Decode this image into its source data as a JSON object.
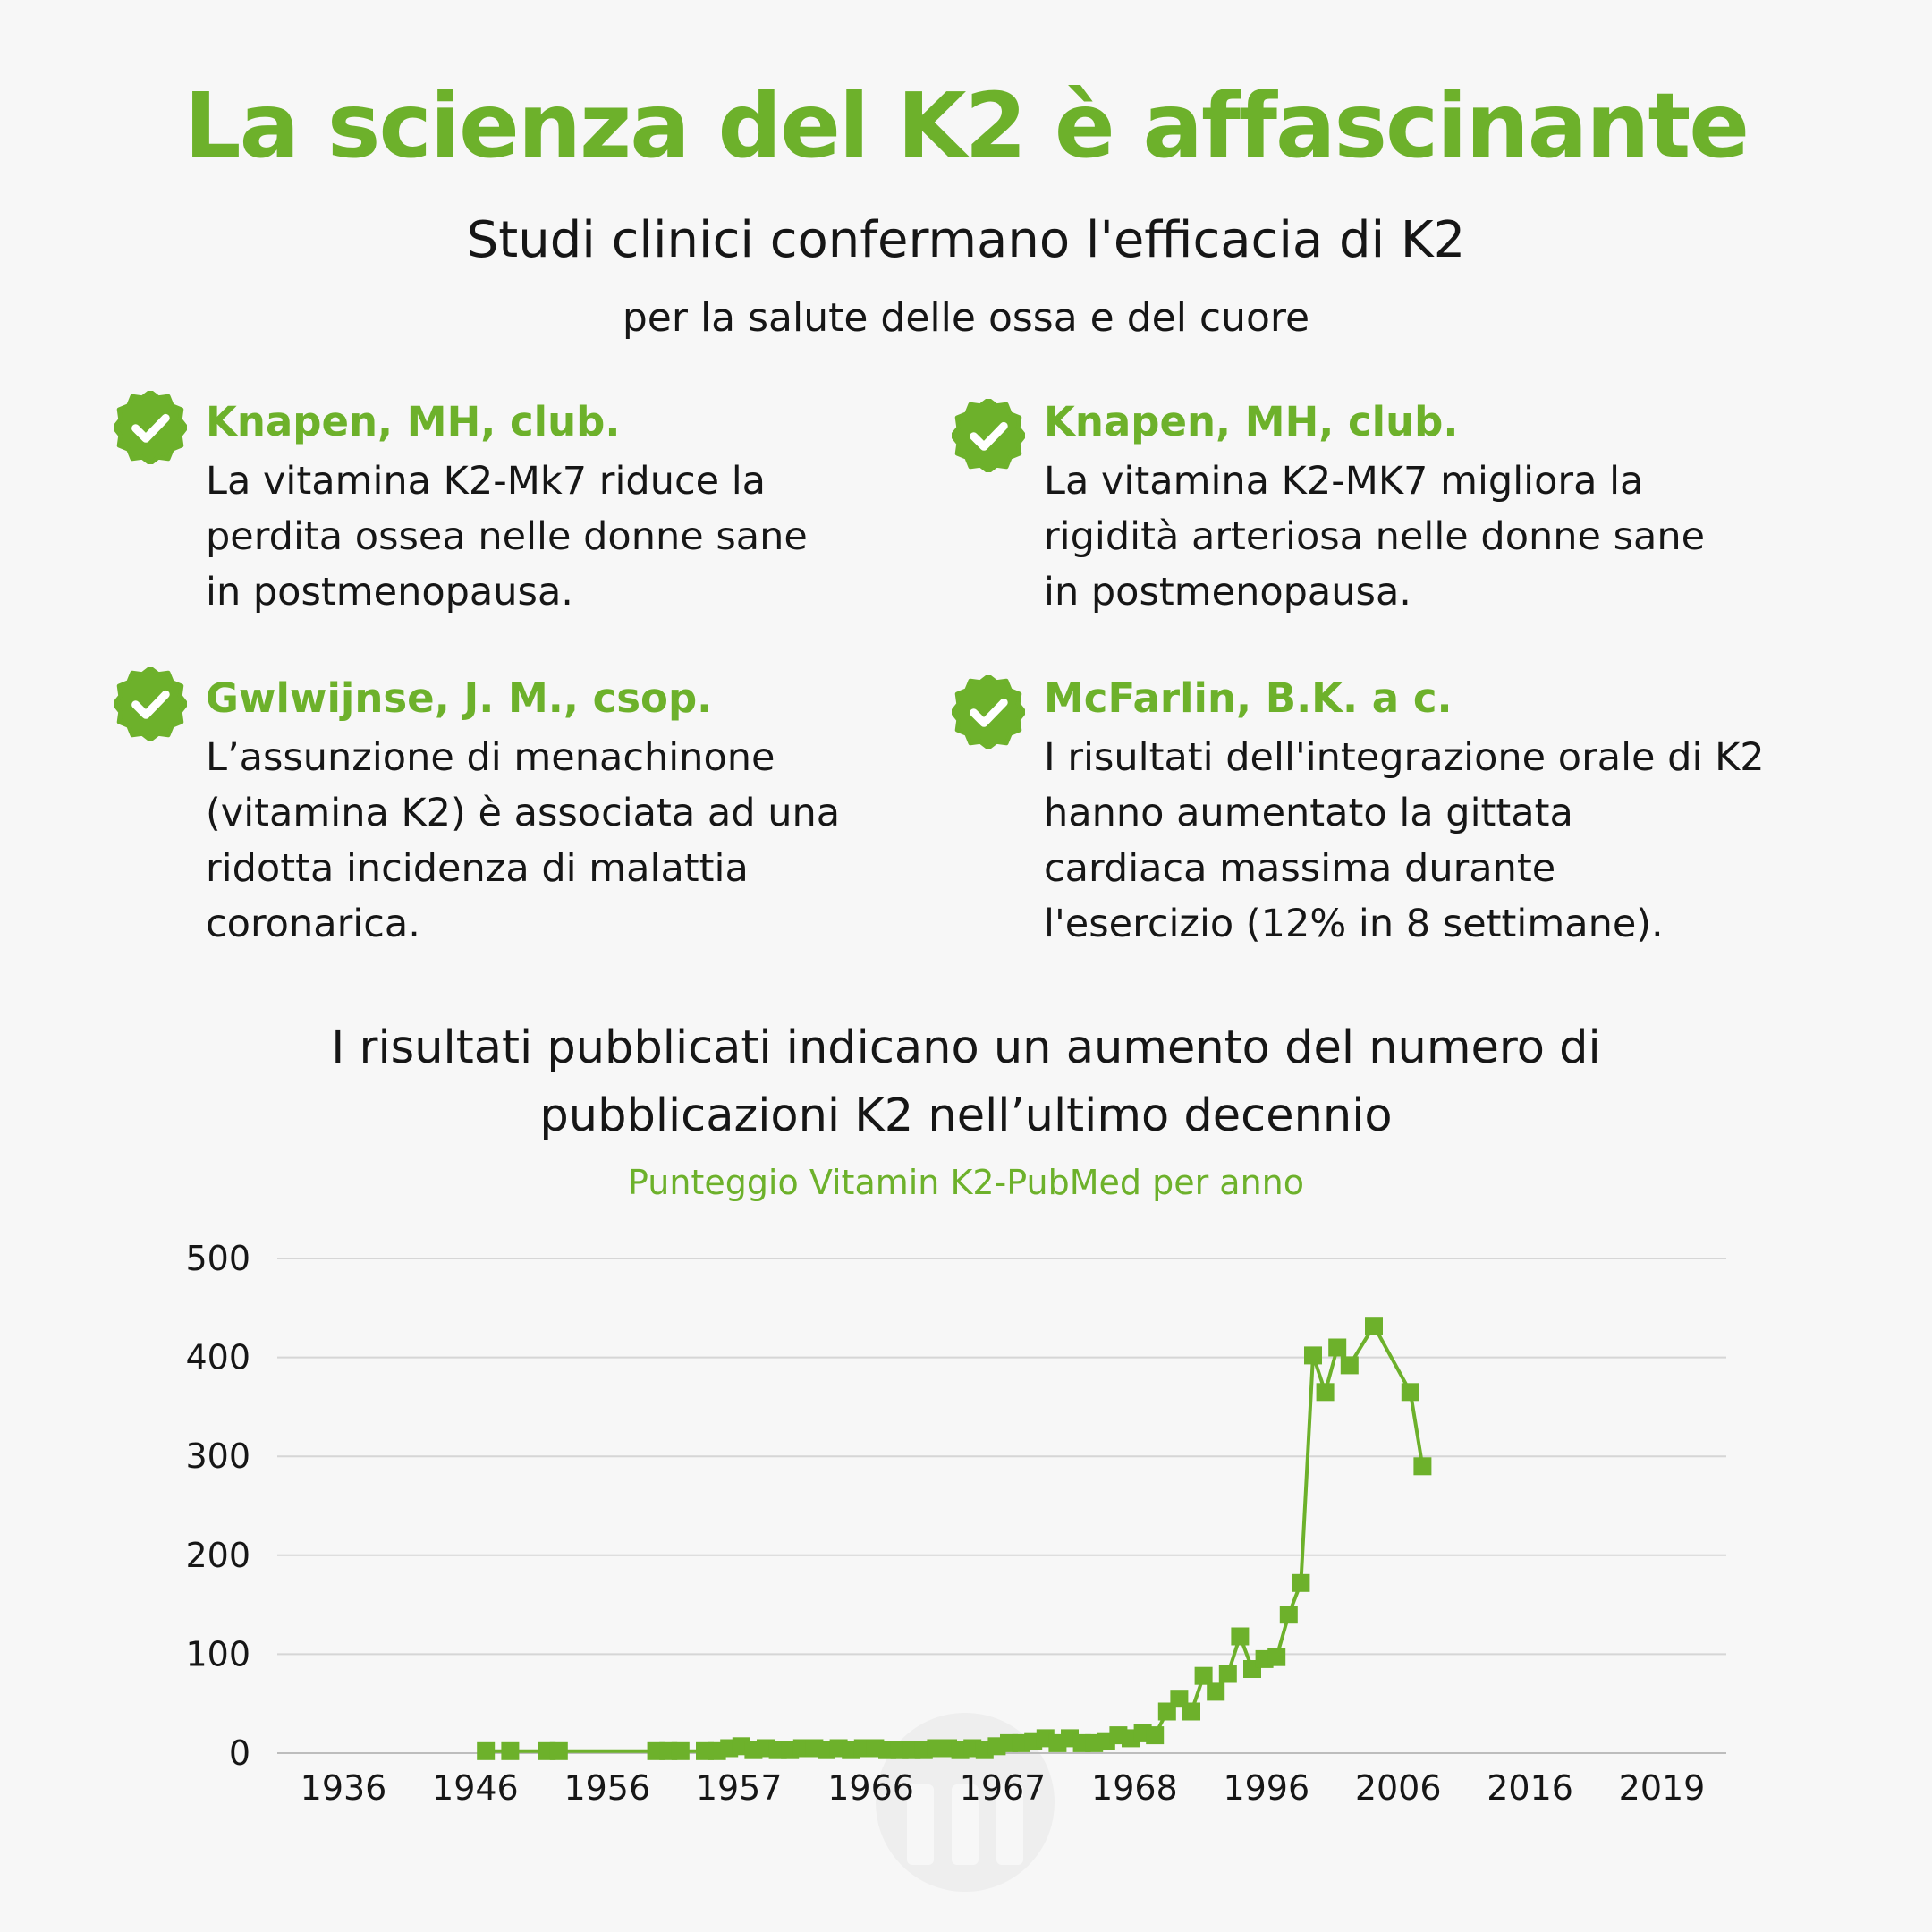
{
  "header": {
    "title": "La scienza del K2 è affascinante",
    "subtitle": "Studi clinici confermano l'efficacia di K2",
    "subtitle2": "per la salute delle ossa e del cuore"
  },
  "studies": [
    {
      "author": "Knapen, MH, club.",
      "lines": [
        "La vitamina K2-Mk7 riduce la",
        "perdita ossea nelle donne sane",
        "in postmenopausa."
      ],
      "icon": "check-badge-icon"
    },
    {
      "author": "Knapen, MH, club.",
      "lines": [
        "La vitamina K2-MK7 migliora la",
        "rigidità arteriosa nelle donne sane",
        "in postmenopausa."
      ],
      "icon": "check-badge-icon"
    },
    {
      "author": "Gwlwijnse, J. M., csop.",
      "lines": [
        "L’assunzione di menachinone",
        "(vitamina K2) è associata ad una",
        "ridotta incidenza di malattia",
        "coronarica."
      ],
      "icon": "check-badge-icon"
    },
    {
      "author": "McFarlin, B.K. a c.",
      "lines": [
        "I risultati dell'integrazione orale di K2",
        "hanno aumentato la gittata",
        "cardiaca massima durante",
        "l'esercizio (12% in 8 settimane)."
      ],
      "icon": "check-badge-icon"
    }
  ],
  "chart_heading": {
    "line1": "I risultati pubblicati indicano un aumento del numero di",
    "line2": "pubblicazioni K2 nell’ultimo decennio"
  },
  "colors": {
    "accent": "#6db12b",
    "text": "#161616",
    "background": "#f7f7f7",
    "grid": "#d6d6d6"
  },
  "chart_data": {
    "type": "line",
    "title": "Punteggio Vitamin K2-PubMed per anno",
    "xlabel": "",
    "ylabel": "",
    "ylim": [
      0,
      500
    ],
    "yticks": [
      0,
      100,
      200,
      300,
      400,
      500
    ],
    "xtick_labels": [
      "1936",
      "1946",
      "1956",
      "1957",
      "1966",
      "1967",
      "1968",
      "1996",
      "2006",
      "2016",
      "2019"
    ],
    "series": [
      {
        "name": "Vitamin K2-PubMed",
        "values": [
          null,
          null,
          null,
          null,
          null,
          null,
          null,
          null,
          null,
          null,
          null,
          null,
          2,
          null,
          2,
          null,
          null,
          2,
          2,
          null,
          null,
          null,
          null,
          null,
          null,
          null,
          2,
          2,
          2,
          null,
          2,
          2,
          5,
          7,
          3,
          5,
          3,
          3,
          5,
          5,
          3,
          5,
          3,
          5,
          5,
          3,
          3,
          3,
          3,
          5,
          5,
          3,
          5,
          3,
          7,
          10,
          10,
          12,
          15,
          10,
          15,
          10,
          10,
          12,
          18,
          15,
          20,
          18,
          42,
          55,
          42,
          78,
          62,
          80,
          118,
          85,
          95,
          97,
          140,
          172,
          402,
          365,
          410,
          392,
          null,
          432,
          null,
          null,
          365,
          290
        ]
      }
    ]
  }
}
